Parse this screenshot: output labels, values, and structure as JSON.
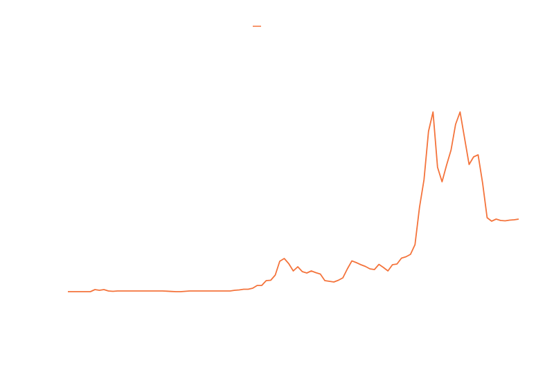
{
  "chart_data": {
    "type": "line",
    "series": [
      {
        "color": "#f4733b",
        "values": [
          58,
          58,
          58,
          58,
          58,
          58,
          61,
          60,
          61,
          59,
          58.5,
          59,
          59,
          59,
          59,
          59,
          59,
          59,
          59,
          59,
          59,
          59,
          58.7,
          58.3,
          58,
          58,
          58.5,
          59,
          59,
          59,
          59,
          59,
          59,
          59,
          59,
          59,
          59,
          60,
          60.5,
          61.5,
          61.5,
          63,
          67,
          67,
          74,
          74.5,
          82,
          102,
          106,
          98.5,
          88,
          94,
          87,
          85,
          88,
          85.5,
          83.5,
          74,
          73,
          72,
          74.5,
          78,
          91,
          102.5,
          100,
          97,
          94.5,
          91,
          90,
          97.5,
          93,
          88,
          97,
          98,
          106.5,
          108.5,
          112,
          126,
          180,
          220,
          290,
          318,
          238,
          217,
          241,
          263,
          300,
          318,
          280,
          242,
          253,
          256,
          215,
          165,
          160,
          163,
          161,
          160.5,
          161.5,
          162,
          163
        ]
      }
    ],
    "ylim": [
      0,
      450
    ]
  }
}
